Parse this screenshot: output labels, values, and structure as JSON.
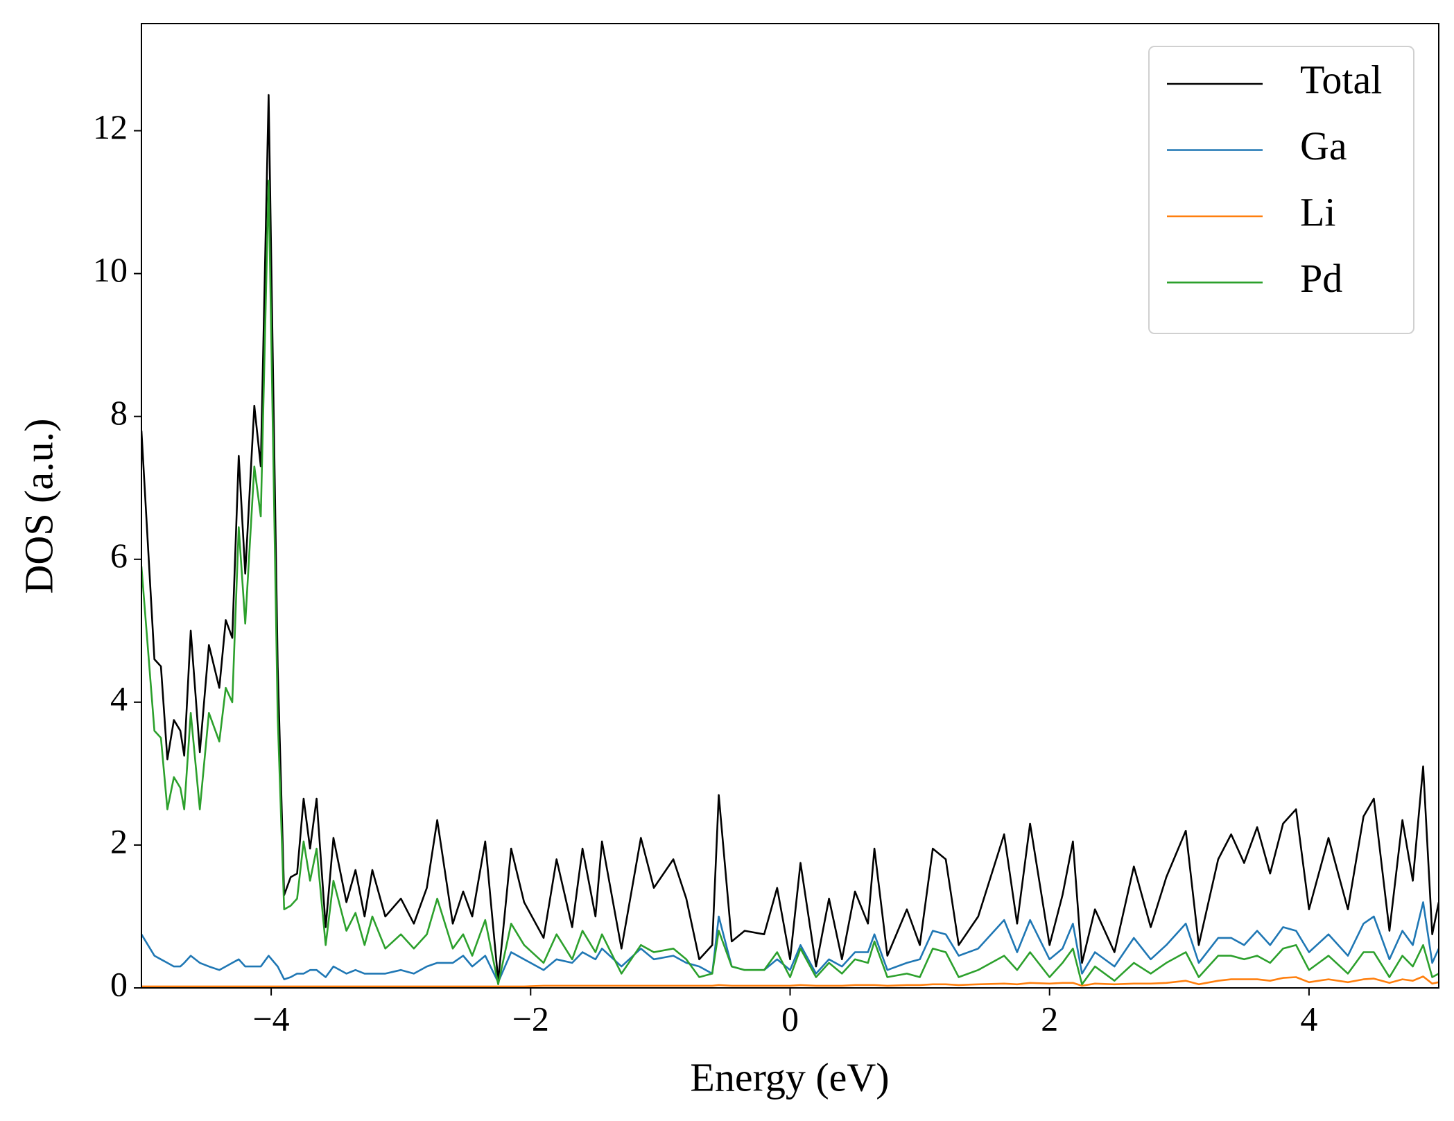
{
  "chart_data": {
    "type": "line",
    "xlabel": "Energy (eV)",
    "ylabel": "DOS (a.u.)",
    "xlim": [
      -5,
      5
    ],
    "ylim": [
      0,
      13.5
    ],
    "xticks": [
      {
        "value": -4,
        "label": "−4"
      },
      {
        "value": -2,
        "label": "−2"
      },
      0,
      2,
      4
    ],
    "yticks": [
      0,
      2,
      4,
      6,
      8,
      10,
      12
    ],
    "legend": "upper right",
    "x": [
      -5,
      -4.9,
      -4.85,
      -4.8,
      -4.75,
      -4.7,
      -4.67,
      -4.62,
      -4.55,
      -4.48,
      -4.4,
      -4.35,
      -4.3,
      -4.25,
      -4.2,
      -4.13,
      -4.08,
      -4.02,
      -3.95,
      -3.9,
      -3.85,
      -3.8,
      -3.75,
      -3.7,
      -3.65,
      -3.58,
      -3.52,
      -3.42,
      -3.35,
      -3.28,
      -3.22,
      -3.12,
      -3,
      -2.9,
      -2.8,
      -2.72,
      -2.6,
      -2.52,
      -2.45,
      -2.35,
      -2.25,
      -2.15,
      -2.05,
      -1.9,
      -1.8,
      -1.68,
      -1.6,
      -1.5,
      -1.45,
      -1.3,
      -1.15,
      -1.05,
      -0.9,
      -0.8,
      -0.7,
      -0.6,
      -0.55,
      -0.45,
      -0.35,
      -0.2,
      -0.1,
      0,
      0.08,
      0.2,
      0.3,
      0.4,
      0.5,
      0.6,
      0.65,
      0.75,
      0.9,
      1,
      1.1,
      1.2,
      1.3,
      1.45,
      1.65,
      1.75,
      1.85,
      2,
      2.1,
      2.18,
      2.25,
      2.35,
      2.5,
      2.65,
      2.78,
      2.9,
      3.05,
      3.15,
      3.3,
      3.4,
      3.5,
      3.6,
      3.7,
      3.8,
      3.9,
      4,
      4.15,
      4.3,
      4.42,
      4.5,
      4.62,
      4.72,
      4.8,
      4.88,
      4.95,
      5
    ],
    "series": [
      {
        "name": "Total",
        "color": "#000000",
        "values": [
          7.8,
          4.6,
          4.5,
          3.2,
          3.75,
          3.6,
          3.25,
          5.0,
          3.3,
          4.8,
          4.2,
          5.15,
          4.9,
          7.45,
          5.8,
          8.15,
          7.3,
          12.5,
          4.5,
          1.3,
          1.55,
          1.6,
          2.65,
          1.95,
          2.65,
          0.85,
          2.1,
          1.2,
          1.65,
          1.0,
          1.65,
          1.0,
          1.25,
          0.9,
          1.4,
          2.35,
          0.9,
          1.35,
          1.0,
          2.05,
          0.1,
          1.95,
          1.2,
          0.7,
          1.8,
          0.85,
          1.95,
          1.0,
          2.05,
          0.55,
          2.1,
          1.4,
          1.8,
          1.25,
          0.4,
          0.6,
          2.7,
          0.65,
          0.8,
          0.75,
          1.4,
          0.4,
          1.75,
          0.3,
          1.25,
          0.4,
          1.35,
          0.9,
          1.95,
          0.45,
          1.1,
          0.6,
          1.95,
          1.8,
          0.6,
          1.0,
          2.15,
          0.9,
          2.3,
          0.6,
          1.3,
          2.05,
          0.35,
          1.1,
          0.5,
          1.7,
          0.85,
          1.55,
          2.2,
          0.6,
          1.8,
          2.15,
          1.75,
          2.25,
          1.6,
          2.3,
          2.5,
          1.1,
          2.1,
          1.1,
          2.4,
          2.65,
          0.8,
          2.35,
          1.5,
          3.1,
          0.75,
          1.2
        ]
      },
      {
        "name": "Ga",
        "color": "#1f77b4",
        "values": [
          0.75,
          0.45,
          0.4,
          0.35,
          0.3,
          0.3,
          0.35,
          0.45,
          0.35,
          0.3,
          0.25,
          0.3,
          0.35,
          0.4,
          0.3,
          0.3,
          0.3,
          0.45,
          0.3,
          0.12,
          0.15,
          0.2,
          0.2,
          0.25,
          0.25,
          0.15,
          0.3,
          0.2,
          0.25,
          0.2,
          0.2,
          0.2,
          0.25,
          0.2,
          0.3,
          0.35,
          0.35,
          0.45,
          0.3,
          0.45,
          0.08,
          0.5,
          0.4,
          0.25,
          0.4,
          0.35,
          0.5,
          0.4,
          0.55,
          0.3,
          0.55,
          0.4,
          0.45,
          0.35,
          0.3,
          0.2,
          1.0,
          0.3,
          0.25,
          0.25,
          0.4,
          0.25,
          0.6,
          0.2,
          0.4,
          0.3,
          0.5,
          0.5,
          0.75,
          0.25,
          0.35,
          0.4,
          0.8,
          0.75,
          0.45,
          0.55,
          0.95,
          0.5,
          0.95,
          0.4,
          0.55,
          0.9,
          0.2,
          0.5,
          0.3,
          0.7,
          0.4,
          0.6,
          0.9,
          0.35,
          0.7,
          0.7,
          0.6,
          0.8,
          0.6,
          0.85,
          0.8,
          0.5,
          0.75,
          0.45,
          0.9,
          1.0,
          0.4,
          0.8,
          0.6,
          1.2,
          0.35,
          0.55
        ]
      },
      {
        "name": "Li",
        "color": "#ff7f0e",
        "values": [
          0.02,
          0.02,
          0.02,
          0.02,
          0.02,
          0.02,
          0.02,
          0.02,
          0.02,
          0.02,
          0.02,
          0.02,
          0.02,
          0.02,
          0.02,
          0.02,
          0.02,
          0.02,
          0.02,
          0.02,
          0.02,
          0.02,
          0.02,
          0.02,
          0.02,
          0.02,
          0.02,
          0.02,
          0.02,
          0.02,
          0.02,
          0.02,
          0.02,
          0.02,
          0.02,
          0.02,
          0.02,
          0.02,
          0.02,
          0.02,
          0.02,
          0.02,
          0.02,
          0.03,
          0.03,
          0.03,
          0.03,
          0.03,
          0.03,
          0.03,
          0.03,
          0.03,
          0.03,
          0.03,
          0.03,
          0.03,
          0.04,
          0.03,
          0.03,
          0.03,
          0.03,
          0.03,
          0.04,
          0.03,
          0.03,
          0.03,
          0.04,
          0.04,
          0.04,
          0.03,
          0.04,
          0.04,
          0.05,
          0.05,
          0.04,
          0.05,
          0.06,
          0.05,
          0.07,
          0.06,
          0.07,
          0.07,
          0.03,
          0.06,
          0.05,
          0.06,
          0.06,
          0.07,
          0.1,
          0.05,
          0.1,
          0.12,
          0.12,
          0.12,
          0.1,
          0.14,
          0.15,
          0.08,
          0.12,
          0.08,
          0.12,
          0.13,
          0.07,
          0.12,
          0.1,
          0.16,
          0.06,
          0.08
        ]
      },
      {
        "name": "Pd",
        "color": "#2ca02c",
        "values": [
          5.9,
          3.6,
          3.5,
          2.5,
          2.95,
          2.8,
          2.5,
          3.85,
          2.5,
          3.85,
          3.45,
          4.2,
          4.0,
          6.45,
          5.1,
          7.3,
          6.6,
          11.3,
          3.8,
          1.1,
          1.15,
          1.25,
          2.05,
          1.5,
          1.95,
          0.6,
          1.5,
          0.8,
          1.05,
          0.6,
          1.0,
          0.55,
          0.75,
          0.55,
          0.75,
          1.25,
          0.55,
          0.75,
          0.45,
          0.95,
          0.05,
          0.9,
          0.6,
          0.35,
          0.75,
          0.4,
          0.8,
          0.5,
          0.75,
          0.2,
          0.6,
          0.5,
          0.55,
          0.4,
          0.15,
          0.2,
          0.8,
          0.3,
          0.25,
          0.25,
          0.5,
          0.15,
          0.55,
          0.15,
          0.35,
          0.2,
          0.4,
          0.35,
          0.65,
          0.15,
          0.2,
          0.15,
          0.55,
          0.5,
          0.15,
          0.25,
          0.45,
          0.25,
          0.5,
          0.15,
          0.35,
          0.55,
          0.05,
          0.3,
          0.1,
          0.35,
          0.2,
          0.35,
          0.5,
          0.15,
          0.45,
          0.45,
          0.4,
          0.45,
          0.35,
          0.55,
          0.6,
          0.25,
          0.45,
          0.2,
          0.5,
          0.5,
          0.15,
          0.45,
          0.3,
          0.6,
          0.15,
          0.2
        ]
      }
    ]
  }
}
